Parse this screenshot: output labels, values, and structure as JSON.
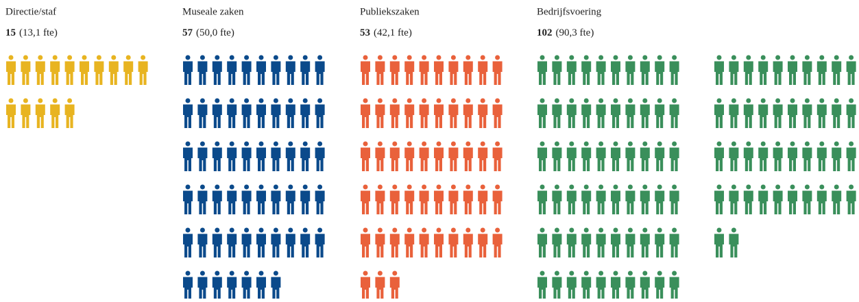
{
  "chart_data": {
    "type": "pictograph",
    "categories": [
      "Directie/staf",
      "Museale zaken",
      "Publiekszaken",
      "Bedrijfsvoering"
    ],
    "values": [
      15,
      57,
      53,
      102
    ],
    "fte_labels": [
      "(13,1 fte)",
      "(50,0 fte)",
      "(42,1 fte)",
      "(90,3 fte)"
    ],
    "colors": [
      "#e8b421",
      "#0b4a8b",
      "#e9613b",
      "#3a8f5b"
    ]
  }
}
